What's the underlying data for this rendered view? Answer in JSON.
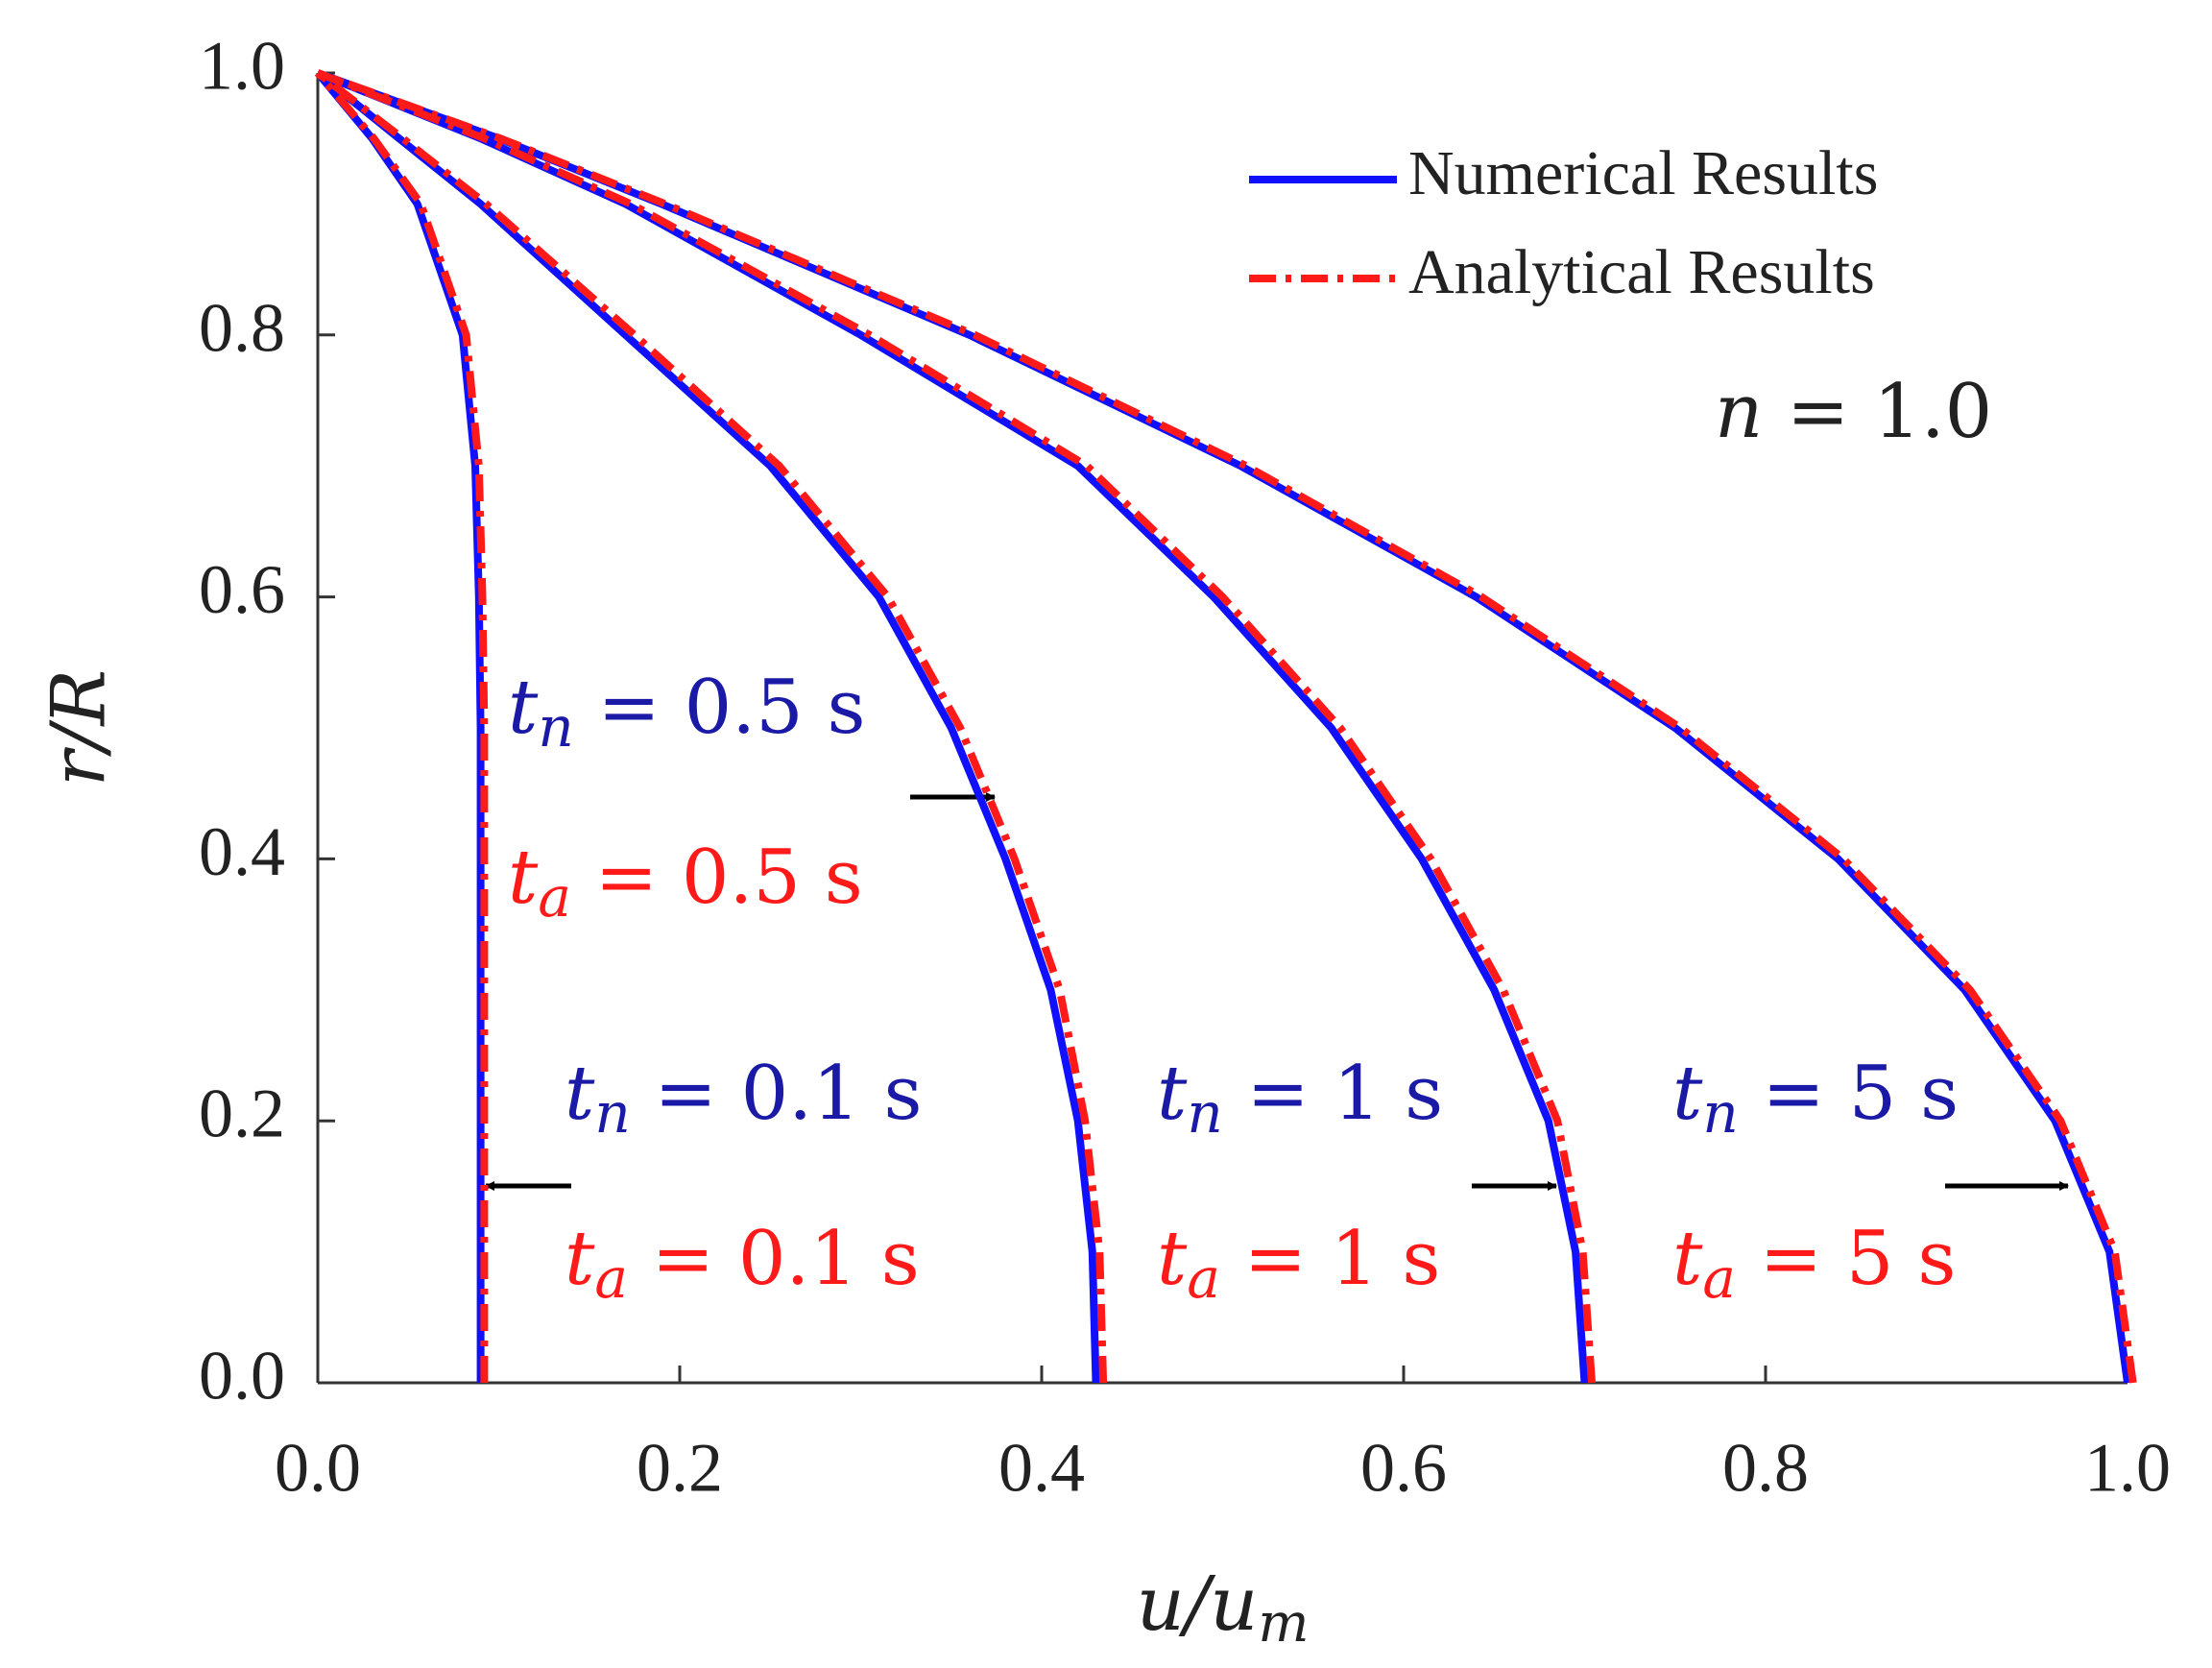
{
  "chart_data": {
    "type": "line",
    "xlabel": {
      "text": "u/u",
      "sub": "m"
    },
    "ylabel": "r/R",
    "xlim": [
      0,
      1
    ],
    "ylim": [
      0,
      1
    ],
    "xticks": [
      {
        "value": 0,
        "label": "0.0"
      },
      0.2,
      0.4,
      0.6,
      0.8,
      {
        "value": 1,
        "label": "1.0"
      }
    ],
    "yticks": [
      {
        "value": 0,
        "label": "0.0"
      },
      0.2,
      0.4,
      0.6,
      0.8,
      {
        "value": 1,
        "label": "1.0"
      }
    ],
    "legend": "upper right",
    "series": [
      {
        "name": "Numerical Results",
        "color": "#1010ff",
        "dash": "solid",
        "curves": [
          {
            "x": [
              0.09,
              0.09,
              0.09,
              0.09,
              0.09,
              0.09,
              0.089,
              0.087,
              0.08,
              0.055,
              0.03,
              0
            ],
            "values": [
              0,
              0.1,
              0.2,
              0.3,
              0.4,
              0.5,
              0.6,
              0.7,
              0.8,
              0.9,
              0.95,
              1
            ]
          },
          {
            "x": [
              0.43,
              0.428,
              0.42,
              0.405,
              0.38,
              0.35,
              0.31,
              0.25,
              0.17,
              0.09,
              0.045,
              0
            ],
            "values": [
              0,
              0.1,
              0.2,
              0.3,
              0.4,
              0.5,
              0.6,
              0.7,
              0.8,
              0.9,
              0.95,
              1
            ]
          },
          {
            "x": [
              0.7,
              0.695,
              0.68,
              0.65,
              0.61,
              0.56,
              0.495,
              0.42,
              0.3,
              0.17,
              0.09,
              0
            ],
            "values": [
              0,
              0.1,
              0.2,
              0.3,
              0.4,
              0.5,
              0.6,
              0.7,
              0.8,
              0.9,
              0.95,
              1
            ]
          },
          {
            "x": [
              1,
              0.99,
              0.96,
              0.91,
              0.84,
              0.75,
              0.64,
              0.51,
              0.36,
              0.19,
              0.1,
              0
            ],
            "values": [
              0,
              0.1,
              0.2,
              0.3,
              0.4,
              0.5,
              0.6,
              0.7,
              0.8,
              0.9,
              0.95,
              1
            ]
          }
        ]
      },
      {
        "name": "Analytical Results",
        "color": "#ff1a1a",
        "dash": "dashdot",
        "curves": [
          {
            "x": [
              0.092,
              0.092,
              0.092,
              0.092,
              0.092,
              0.092,
              0.091,
              0.089,
              0.082,
              0.057,
              0.031,
              0
            ],
            "values": [
              0,
              0.1,
              0.2,
              0.3,
              0.4,
              0.5,
              0.6,
              0.7,
              0.8,
              0.9,
              0.95,
              1
            ]
          },
          {
            "x": [
              0.434,
              0.432,
              0.424,
              0.41,
              0.385,
              0.355,
              0.315,
              0.255,
              0.175,
              0.093,
              0.047,
              0
            ],
            "values": [
              0,
              0.1,
              0.2,
              0.3,
              0.4,
              0.5,
              0.6,
              0.7,
              0.8,
              0.9,
              0.95,
              1
            ]
          },
          {
            "x": [
              0.704,
              0.699,
              0.685,
              0.655,
              0.615,
              0.565,
              0.5,
              0.425,
              0.305,
              0.173,
              0.092,
              0
            ],
            "values": [
              0,
              0.1,
              0.2,
              0.3,
              0.4,
              0.5,
              0.6,
              0.7,
              0.8,
              0.9,
              0.95,
              1
            ]
          },
          {
            "x": [
              1.003,
              0.993,
              0.963,
              0.913,
              0.843,
              0.753,
              0.643,
              0.513,
              0.363,
              0.192,
              0.101,
              0
            ],
            "values": [
              0,
              0.1,
              0.2,
              0.3,
              0.4,
              0.5,
              0.6,
              0.7,
              0.8,
              0.9,
              0.95,
              1
            ]
          }
        ]
      }
    ],
    "parameter": {
      "var": "n",
      "rest": " = 1.0"
    },
    "annotations": [
      {
        "var": "t",
        "sub": "n",
        "rest": " = 0.5 s",
        "color": "#1a1aa6"
      },
      {
        "var": "t",
        "sub": "a",
        "rest": " = 0.5 s",
        "color": "#ff1a1a"
      },
      {
        "var": "t",
        "sub": "n",
        "rest": " = 0.1 s",
        "color": "#1a1aa6"
      },
      {
        "var": "t",
        "sub": "a",
        "rest": " = 0.1 s",
        "color": "#ff1a1a"
      },
      {
        "var": "t",
        "sub": "n",
        "rest": " = 1 s",
        "color": "#1a1aa6"
      },
      {
        "var": "t",
        "sub": "a",
        "rest": " = 1 s",
        "color": "#ff1a1a"
      },
      {
        "var": "t",
        "sub": "n",
        "rest": " = 5 s",
        "color": "#1a1aa6"
      },
      {
        "var": "t",
        "sub": "a",
        "rest": " = 5 s",
        "color": "#ff1a1a"
      }
    ]
  }
}
